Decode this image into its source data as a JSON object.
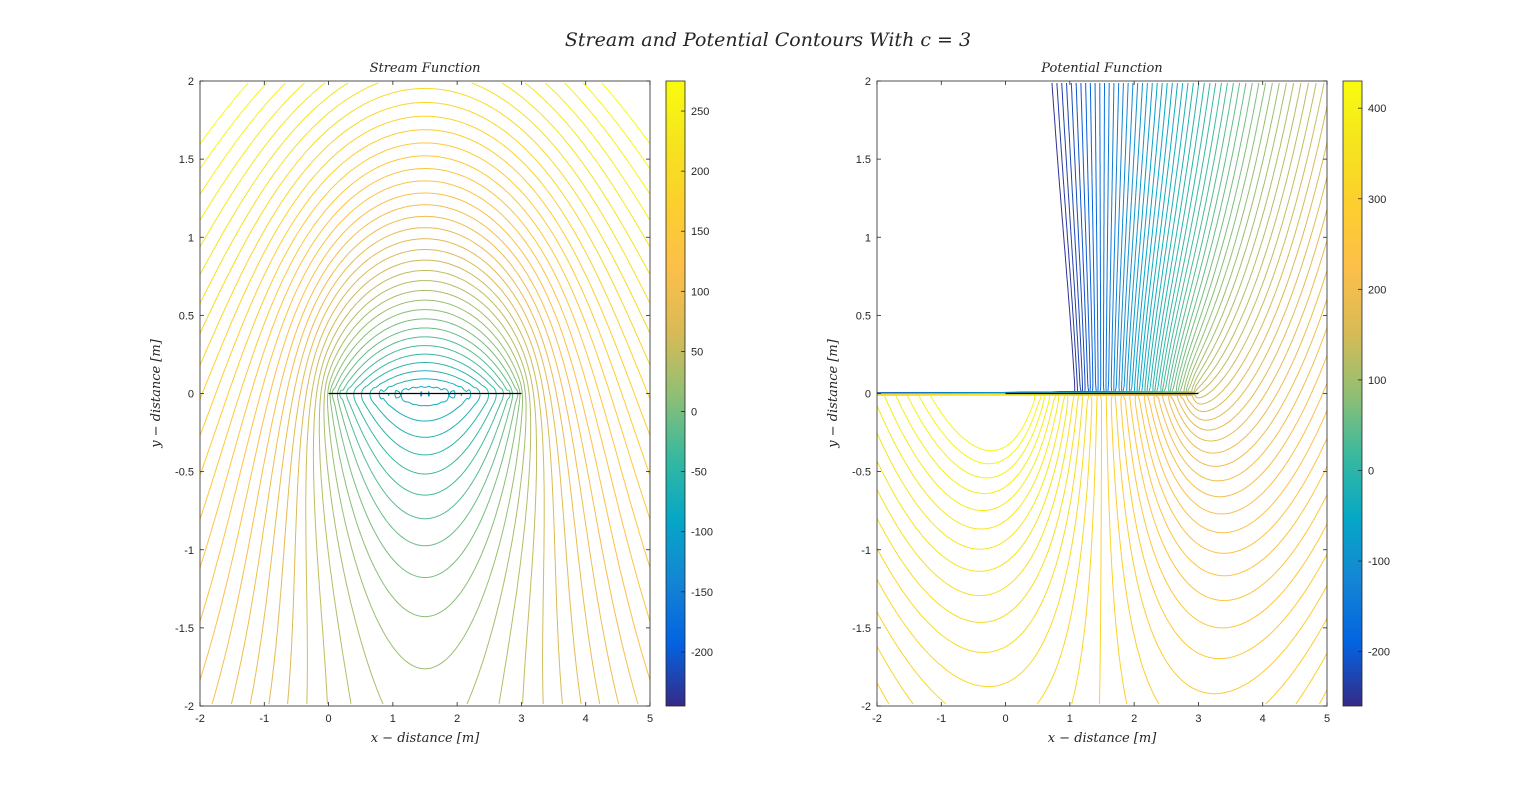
{
  "figure": {
    "suptitle": "Stream and Potential Contours With c = 3"
  },
  "chart_data": [
    {
      "type": "contour",
      "title": "Stream Function",
      "xlabel": "x − distance [m]",
      "ylabel": "y − distance [m]",
      "xlim": [
        -2,
        5
      ],
      "ylim": [
        -2,
        2
      ],
      "x_ticks": [
        "-2",
        "-1",
        "0",
        "1",
        "2",
        "3",
        "4",
        "5"
      ],
      "y_ticks": [
        "2",
        "1.5",
        "1",
        "0.5",
        "0",
        "-0.5",
        "-1",
        "-1.5",
        "-2"
      ],
      "plate": {
        "x": [
          0,
          3
        ],
        "y": 0,
        "color": "#000000"
      },
      "colorbar": {
        "range": [
          -245,
          275
        ],
        "ticks": [
          "250",
          "200",
          "150",
          "100",
          "50",
          "0",
          "-50",
          "-100",
          "-150",
          "-200"
        ],
        "colormap": "parula"
      },
      "levels": {
        "min": -240,
        "max": 270,
        "step": 10
      }
    },
    {
      "type": "contour",
      "title": "Potential Function",
      "xlabel": "x − distance [m]",
      "ylabel": "y − distance [m]",
      "xlim": [
        -2,
        5
      ],
      "ylim": [
        -2,
        2
      ],
      "x_ticks": [
        "-2",
        "-1",
        "0",
        "1",
        "2",
        "3",
        "4",
        "5"
      ],
      "y_ticks": [
        "2",
        "1.5",
        "1",
        "0.5",
        "0",
        "-0.5",
        "-1",
        "-1.5",
        "-2"
      ],
      "plate": {
        "x": [
          0,
          3
        ],
        "y": 0,
        "color": "#000000"
      },
      "colorbar": {
        "range": [
          -260,
          430
        ],
        "ticks": [
          "400",
          "300",
          "200",
          "100",
          "0",
          "-100",
          "-200"
        ],
        "colormap": "parula"
      },
      "levels": {
        "min": -250,
        "max": 420,
        "step": 8
      }
    }
  ]
}
